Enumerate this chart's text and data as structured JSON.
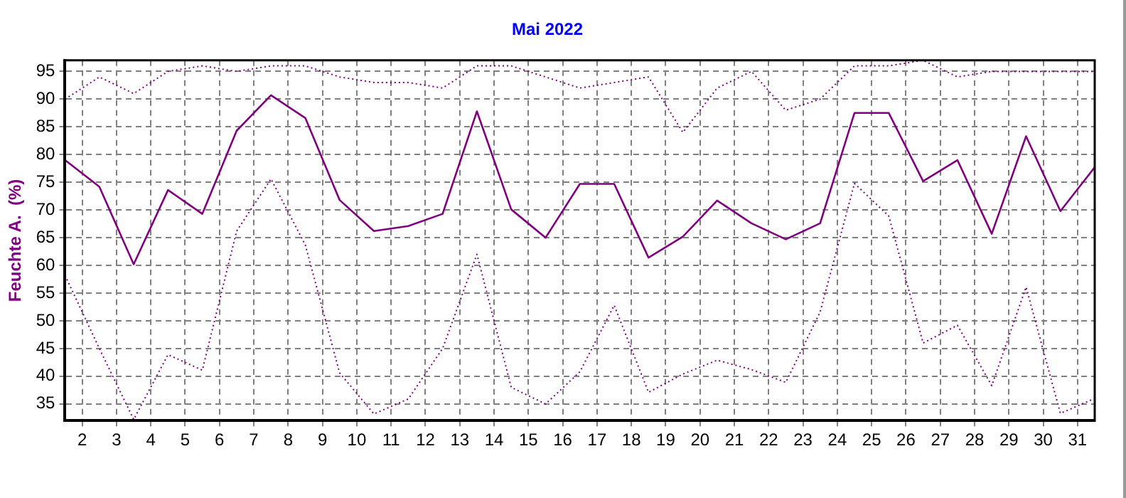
{
  "chart_data": {
    "type": "line",
    "title": "Mai 2022",
    "ylabel": "Feuchte A.  (%)",
    "x": [
      1.5,
      2.5,
      3.5,
      4.5,
      5.5,
      6.5,
      7.5,
      8.5,
      9.5,
      10.5,
      11.5,
      12.5,
      13.5,
      14.5,
      15.5,
      16.5,
      17.5,
      18.5,
      19.5,
      20.5,
      21.5,
      22.5,
      23.5,
      24.5,
      25.5,
      26.5,
      27.5,
      28.5,
      29.5,
      30.5,
      31.5
    ],
    "series": [
      {
        "color": "#800080",
        "line_style": "dotted",
        "values": [
          90,
          94,
          91,
          95,
          96,
          95,
          96,
          96,
          94,
          93,
          93,
          92,
          96,
          96,
          94,
          92,
          93,
          94,
          84,
          92,
          95,
          88,
          90,
          96,
          96,
          97,
          94,
          95,
          95,
          95,
          95
        ]
      },
      {
        "color": "#800080",
        "line_style": "solid",
        "values": [
          79,
          74.2,
          60.2,
          73.6,
          69.3,
          84.3,
          90.7,
          86.6,
          71.8,
          66.2,
          67.1,
          69.3,
          87.8,
          70.1,
          65,
          74.7,
          74.7,
          61.4,
          65.2,
          71.7,
          67.6,
          64.7,
          67.6,
          87.5,
          87.5,
          75.2,
          79,
          65.7,
          83.3,
          69.8,
          77.7
        ]
      },
      {
        "color": "#800080",
        "line_style": "dotted",
        "values": [
          58.2,
          45,
          32.2,
          43.9,
          41.1,
          66.2,
          75.6,
          63.7,
          40.6,
          33.2,
          35.9,
          45,
          62,
          38,
          35,
          40.8,
          52.8,
          37.1,
          40.4,
          42.9,
          41.2,
          38.9,
          51.6,
          74.8,
          68.9,
          46,
          49.2,
          38.3,
          56.1,
          33.3,
          36
        ]
      }
    ],
    "xlim": [
      1.5,
      31.5
    ],
    "xticks": [
      2,
      3,
      4,
      5,
      6,
      7,
      8,
      9,
      10,
      11,
      12,
      13,
      14,
      15,
      16,
      17,
      18,
      19,
      20,
      21,
      22,
      23,
      24,
      25,
      26,
      27,
      28,
      29,
      30,
      31
    ],
    "ylim": [
      32,
      97
    ],
    "yticks": [
      35,
      40,
      45,
      50,
      55,
      60,
      65,
      70,
      75,
      80,
      85,
      90,
      95
    ],
    "grid": true,
    "legend": false,
    "marker": "none"
  }
}
